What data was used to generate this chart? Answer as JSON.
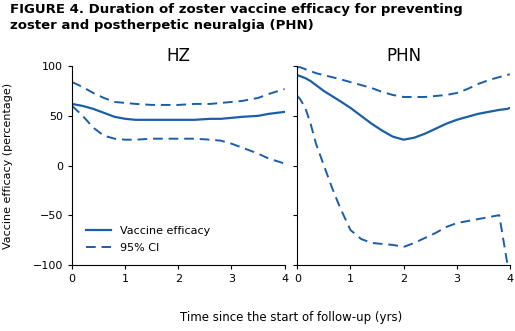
{
  "title_line1": "FIGURE 4. Duration of zoster vaccine efficacy for preventing",
  "title_line2": "zoster and postherpetic neuralgia (PHN)",
  "title_fontsize": 9.5,
  "subplot_titles": [
    "HZ",
    "PHN"
  ],
  "subplot_title_fontsize": 12,
  "xlabel": "Time since the start of follow-up (yrs)",
  "ylabel": "Vaccine efficacy (percentage)",
  "xlabel_fontsize": 8.5,
  "ylabel_fontsize": 8,
  "ylim": [
    -100,
    100
  ],
  "xlim": [
    0,
    4
  ],
  "yticks": [
    -100,
    -50,
    0,
    50,
    100
  ],
  "xticks": [
    0,
    1,
    2,
    3,
    4
  ],
  "line_color": "#1B5EA8",
  "line_width": 1.6,
  "ci_linewidth": 1.4,
  "legend_fontsize": 8,
  "tick_fontsize": 8,
  "hz_x": [
    0.0,
    0.2,
    0.4,
    0.6,
    0.8,
    1.0,
    1.2,
    1.5,
    1.8,
    2.0,
    2.3,
    2.6,
    2.8,
    3.0,
    3.2,
    3.5,
    3.7,
    4.0
  ],
  "hz_efficacy": [
    62,
    60,
    57,
    53,
    49,
    47,
    46,
    46,
    46,
    46,
    46,
    47,
    47,
    48,
    49,
    50,
    52,
    54
  ],
  "hz_ci_upper": [
    84,
    79,
    73,
    68,
    64,
    63,
    62,
    61,
    61,
    61,
    62,
    62,
    63,
    64,
    65,
    68,
    72,
    77
  ],
  "hz_ci_lower": [
    60,
    50,
    38,
    30,
    27,
    26,
    26,
    27,
    27,
    27,
    27,
    26,
    25,
    22,
    18,
    12,
    7,
    2
  ],
  "phn_x": [
    0.0,
    0.05,
    0.15,
    0.25,
    0.35,
    0.5,
    0.65,
    0.8,
    1.0,
    1.2,
    1.4,
    1.6,
    1.8,
    2.0,
    2.2,
    2.4,
    2.6,
    2.8,
    3.0,
    3.2,
    3.4,
    3.6,
    3.8,
    3.95,
    4.0
  ],
  "phn_efficacy": [
    91,
    90,
    88,
    85,
    81,
    75,
    70,
    65,
    58,
    50,
    42,
    35,
    29,
    26,
    28,
    32,
    37,
    42,
    46,
    49,
    52,
    54,
    56,
    57,
    58
  ],
  "phn_ci_upper": [
    99,
    99,
    97,
    95,
    93,
    91,
    89,
    87,
    84,
    81,
    78,
    74,
    71,
    69,
    69,
    69,
    70,
    71,
    73,
    77,
    82,
    86,
    89,
    91,
    92
  ],
  "phn_ci_lower": [
    70,
    67,
    58,
    42,
    22,
    0,
    -22,
    -42,
    -65,
    -74,
    -78,
    -79,
    -80,
    -82,
    -78,
    -73,
    -68,
    -62,
    -58,
    -56,
    -54,
    -52,
    -50,
    -98,
    -100
  ]
}
